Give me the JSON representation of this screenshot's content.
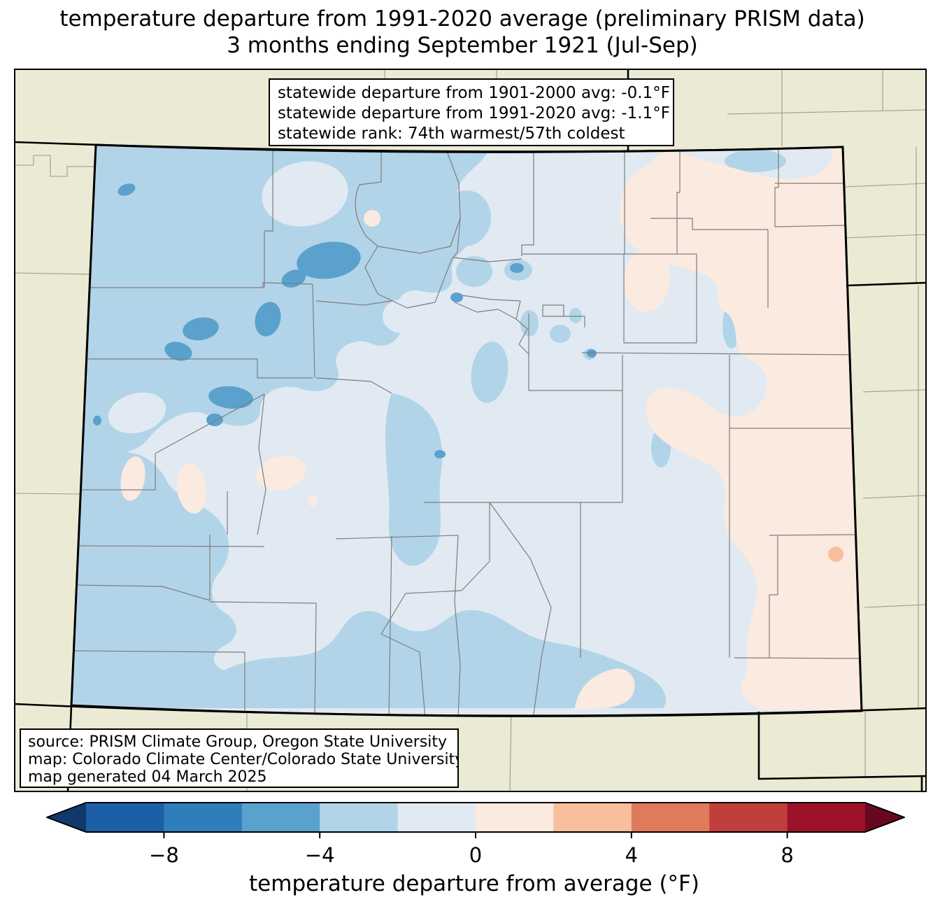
{
  "title": {
    "line1": "temperature departure from 1991-2020 average (preliminary PRISM data)",
    "line2": "3 months ending September 1921 (Jul-Sep)"
  },
  "stats_box": {
    "lines": [
      "statewide departure from 1901-2000 avg: -0.1°F",
      "statewide departure from 1991-2020 avg: -1.1°F",
      "statewide rank: 74th warmest/57th coldest"
    ]
  },
  "source_box": {
    "lines": [
      "source: PRISM Climate Group, Oregon State University",
      "map: Colorado Climate Center/Colorado State University",
      "map generated 04 March 2025"
    ]
  },
  "colorbar": {
    "label": "temperature departure from average (°F)",
    "range": [
      -10,
      10
    ],
    "ticks": [
      {
        "value": -8,
        "label": "−8"
      },
      {
        "value": -4,
        "label": "−4"
      },
      {
        "value": 0,
        "label": "0"
      },
      {
        "value": 4,
        "label": "4"
      },
      {
        "value": 8,
        "label": "8"
      }
    ],
    "segments": [
      {
        "from": -10,
        "to": -8,
        "color": "#1d5fa6"
      },
      {
        "from": -8,
        "to": -6,
        "color": "#2e7ebb"
      },
      {
        "from": -6,
        "to": -4,
        "color": "#5aa1ce"
      },
      {
        "from": -4,
        "to": -2,
        "color": "#b2d4e8"
      },
      {
        "from": -2,
        "to": 0,
        "color": "#e1eaf2"
      },
      {
        "from": 0,
        "to": 2,
        "color": "#faeadf"
      },
      {
        "from": 2,
        "to": 4,
        "color": "#f7bf9e"
      },
      {
        "from": 4,
        "to": 6,
        "color": "#e07a5c"
      },
      {
        "from": 6,
        "to": 8,
        "color": "#c03e3c"
      },
      {
        "from": 8,
        "to": 10,
        "color": "#9d1228"
      }
    ],
    "extend_colors": {
      "left": "#103a6c",
      "right": "#690721"
    }
  },
  "map": {
    "background_color": "#ebead5",
    "state_border_color": "#000000",
    "county_line_color": "#7d7d7d",
    "neighbor_county_line_color": "#9a9a94",
    "frame_color": "#000000",
    "fill_colors": {
      "bin_n6_n4": "#5aa1ce",
      "bin_n4_n2": "#b2d4e8",
      "bin_n2_0": "#e1eaf2",
      "bin_0_2": "#faeadf",
      "bin_2_4": "#f7bf9e"
    }
  }
}
